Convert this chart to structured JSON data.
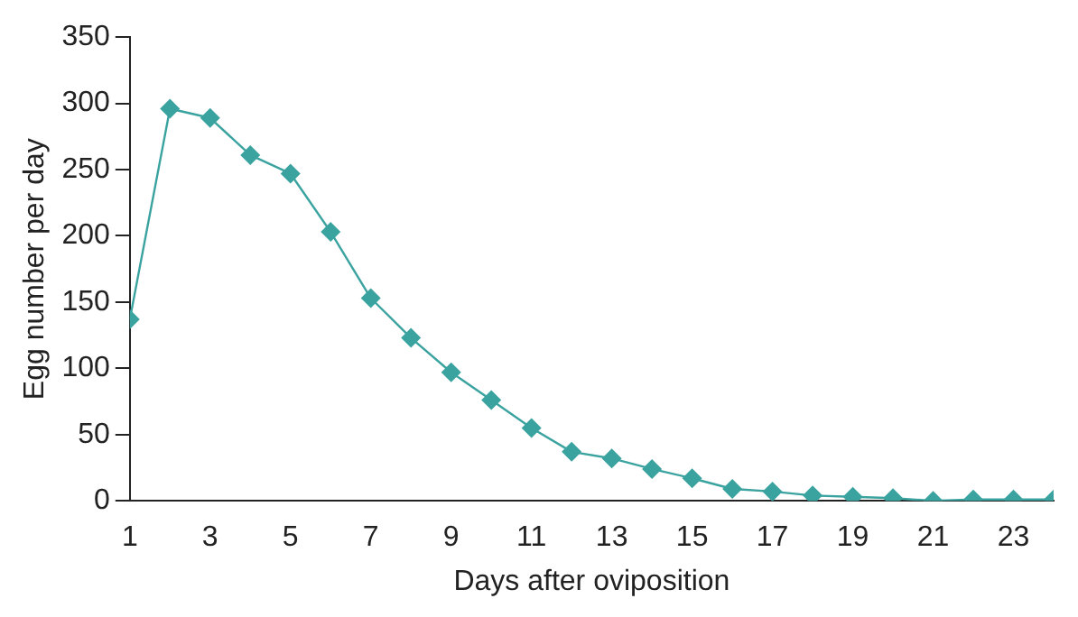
{
  "chart_data": {
    "type": "line",
    "xlabel": "Days after oviposition",
    "ylabel": "Egg number per day",
    "x": [
      1,
      2,
      3,
      4,
      5,
      6,
      7,
      8,
      9,
      10,
      11,
      12,
      13,
      14,
      15,
      16,
      17,
      18,
      19,
      20,
      21,
      22,
      23,
      24
    ],
    "series": [
      {
        "color": "#3aa3a0",
        "values": [
          137,
          296,
          289,
          261,
          247,
          203,
          153,
          123,
          97,
          76,
          55,
          37,
          32,
          24,
          17,
          9,
          7,
          4,
          3,
          2,
          0,
          1,
          1,
          1
        ]
      }
    ],
    "xlim": [
      1,
      24
    ],
    "xticks": [
      1,
      3,
      5,
      7,
      9,
      11,
      13,
      15,
      17,
      19,
      21,
      23
    ],
    "ylim": [
      0,
      350
    ],
    "yticks": [
      0,
      50,
      100,
      150,
      200,
      250,
      300,
      350
    ],
    "grid": false,
    "legend": false,
    "marker": "diamond",
    "line_style": "solid"
  }
}
